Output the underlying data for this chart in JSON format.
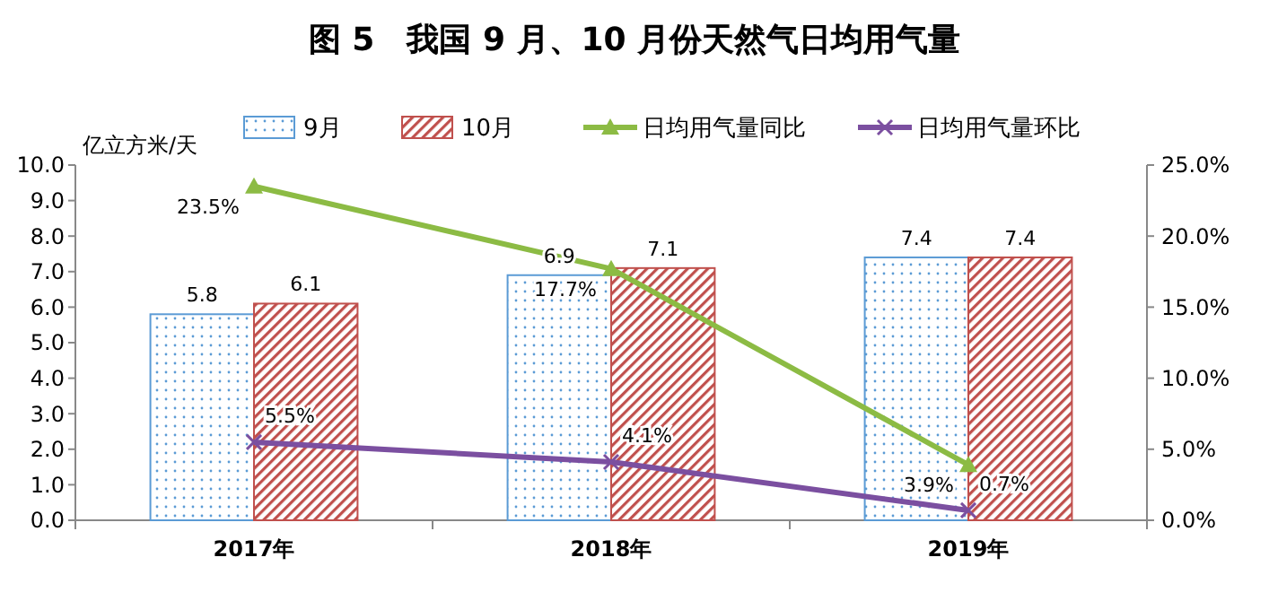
{
  "chart_data": {
    "type": "bar",
    "title": "图 5　我国 9 月、10 月份天然气日均用气量",
    "ylabel": "亿立方米/天",
    "categories": [
      "2017年",
      "2018年",
      "2019年"
    ],
    "series": [
      {
        "name": "9月",
        "color": "#5b9bd5",
        "values": [
          5.8,
          6.9,
          7.4
        ],
        "value_labels": [
          "5.8",
          "6.9",
          "7.4"
        ]
      },
      {
        "name": "10月",
        "color": "#c0504d",
        "values": [
          6.1,
          7.1,
          7.4
        ],
        "value_labels": [
          "6.1",
          "7.1",
          "7.4"
        ]
      },
      {
        "name": "日均用气量同比",
        "type": "line",
        "axis": "y2",
        "marker": "triangle",
        "color": "#8cbb44",
        "values": [
          23.5,
          17.7,
          3.9
        ],
        "value_labels": [
          "23.5%",
          "17.7%",
          "3.9%"
        ]
      },
      {
        "name": "日均用气量环比",
        "type": "line",
        "axis": "y2",
        "marker": "cross",
        "color": "#7b4fa0",
        "values": [
          5.5,
          4.1,
          0.7
        ],
        "value_labels": [
          "5.5%",
          "4.1%",
          "0.7%"
        ]
      }
    ],
    "ylim": [
      0,
      10
    ],
    "yticks": [
      {
        "value": 0,
        "label": "0.0"
      },
      {
        "value": 1,
        "label": "1.0"
      },
      {
        "value": 2,
        "label": "2.0"
      },
      {
        "value": 3,
        "label": "3.0"
      },
      {
        "value": 4,
        "label": "4.0"
      },
      {
        "value": 5,
        "label": "5.0"
      },
      {
        "value": 6,
        "label": "6.0"
      },
      {
        "value": 7,
        "label": "7.0"
      },
      {
        "value": 8,
        "label": "8.0"
      },
      {
        "value": 9,
        "label": "9.0"
      },
      {
        "value": 10,
        "label": "10.0"
      }
    ],
    "y2lim": [
      0,
      25
    ],
    "y2ticks": [
      {
        "value": 0,
        "label": "0.0%"
      },
      {
        "value": 5,
        "label": "5.0%"
      },
      {
        "value": 10,
        "label": "10.0%"
      },
      {
        "value": 15,
        "label": "15.0%"
      },
      {
        "value": 20,
        "label": "20.0%"
      },
      {
        "value": 25,
        "label": "25.0%"
      }
    ],
    "grid": false,
    "legend": "top"
  }
}
